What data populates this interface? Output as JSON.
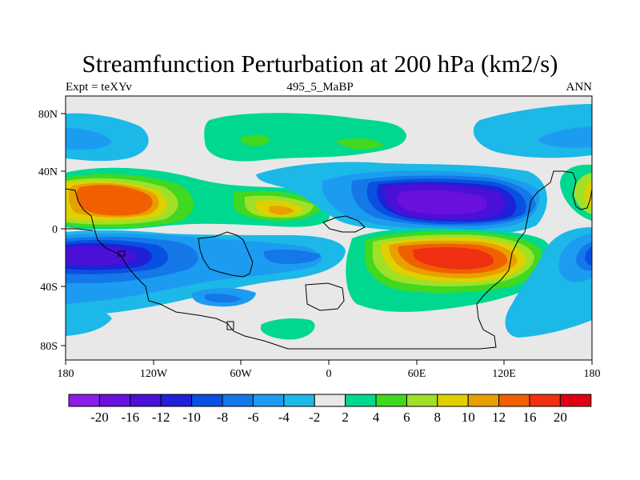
{
  "header": {
    "title": "Streamfunction Perturbation at 200 hPa (km2/s)",
    "left_label": "Expt = teXYv",
    "center_label": "495_5_MaBP",
    "right_label": "ANN"
  },
  "map": {
    "lat_ticks": [
      "80N",
      "40N",
      "0",
      "40S",
      "80S"
    ],
    "lon_ticks": [
      "180",
      "120W",
      "60W",
      "0",
      "60E",
      "120E",
      "180"
    ],
    "background_color": "#e8e8e8"
  },
  "colorbar": {
    "levels": [
      "-20",
      "-16",
      "-12",
      "-10",
      "-8",
      "-6",
      "-4",
      "-2",
      "2",
      "4",
      "6",
      "8",
      "10",
      "12",
      "16",
      "20"
    ],
    "colors": [
      "#8a1ee6",
      "#6a10dc",
      "#4a10d8",
      "#2020d8",
      "#0850e0",
      "#1478e8",
      "#1c9cf0",
      "#1cb8e8",
      "#e8e8e8",
      "#00d890",
      "#40d820",
      "#a0e028",
      "#e0d000",
      "#e8a000",
      "#f06000",
      "#f03010",
      "#e00010"
    ]
  }
}
